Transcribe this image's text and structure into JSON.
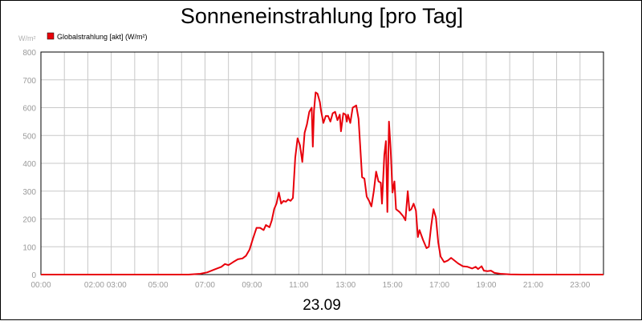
{
  "chart_data": {
    "type": "line",
    "title": "Sonneneinstrahlung [pro Tag]",
    "ylabel": "W/m²",
    "xlabel": "23.09",
    "ylim": [
      0,
      800
    ],
    "xlim": [
      0,
      24
    ],
    "yticks": [
      "0",
      "100",
      "200",
      "300",
      "400",
      "500",
      "600",
      "700",
      "800"
    ],
    "xticks": [
      {
        "x": 0,
        "label": "00:00"
      },
      {
        "x": 2.75,
        "label": "02:00 03:00"
      },
      {
        "x": 5,
        "label": "05:00"
      },
      {
        "x": 7,
        "label": "07:00"
      },
      {
        "x": 9,
        "label": "09:00"
      },
      {
        "x": 11,
        "label": "11:00"
      },
      {
        "x": 13,
        "label": "13:00"
      },
      {
        "x": 15,
        "label": "15:00"
      },
      {
        "x": 17,
        "label": "17:00"
      },
      {
        "x": 19,
        "label": "19:00"
      },
      {
        "x": 21,
        "label": "21:00"
      },
      {
        "x": 23,
        "label": "23:00"
      }
    ],
    "grid": true,
    "legend_position": "top-left",
    "series": [
      {
        "name": "Globalstrahlung [akt] (W/m²)",
        "color": "#e8000b",
        "points": [
          [
            0,
            0
          ],
          [
            6.3,
            0
          ],
          [
            6.8,
            3
          ],
          [
            7.1,
            8
          ],
          [
            7.4,
            18
          ],
          [
            7.7,
            28
          ],
          [
            7.85,
            38
          ],
          [
            8.0,
            34
          ],
          [
            8.2,
            45
          ],
          [
            8.4,
            55
          ],
          [
            8.6,
            58
          ],
          [
            8.75,
            68
          ],
          [
            8.9,
            90
          ],
          [
            9.05,
            130
          ],
          [
            9.2,
            168
          ],
          [
            9.35,
            168
          ],
          [
            9.5,
            160
          ],
          [
            9.6,
            178
          ],
          [
            9.75,
            170
          ],
          [
            9.85,
            195
          ],
          [
            9.95,
            235
          ],
          [
            10.05,
            255
          ],
          [
            10.15,
            295
          ],
          [
            10.25,
            255
          ],
          [
            10.35,
            265
          ],
          [
            10.45,
            262
          ],
          [
            10.55,
            270
          ],
          [
            10.65,
            265
          ],
          [
            10.75,
            275
          ],
          [
            10.85,
            420
          ],
          [
            10.95,
            490
          ],
          [
            11.05,
            465
          ],
          [
            11.15,
            405
          ],
          [
            11.25,
            510
          ],
          [
            11.35,
            540
          ],
          [
            11.45,
            585
          ],
          [
            11.55,
            600
          ],
          [
            11.6,
            460
          ],
          [
            11.65,
            590
          ],
          [
            11.72,
            655
          ],
          [
            11.8,
            650
          ],
          [
            11.9,
            620
          ],
          [
            11.95,
            590
          ],
          [
            12.05,
            545
          ],
          [
            12.15,
            570
          ],
          [
            12.25,
            570
          ],
          [
            12.35,
            550
          ],
          [
            12.45,
            580
          ],
          [
            12.55,
            585
          ],
          [
            12.65,
            555
          ],
          [
            12.75,
            575
          ],
          [
            12.8,
            515
          ],
          [
            12.9,
            580
          ],
          [
            13.0,
            575
          ],
          [
            13.05,
            550
          ],
          [
            13.1,
            575
          ],
          [
            13.2,
            545
          ],
          [
            13.3,
            600
          ],
          [
            13.45,
            608
          ],
          [
            13.55,
            560
          ],
          [
            13.7,
            350
          ],
          [
            13.8,
            345
          ],
          [
            13.9,
            280
          ],
          [
            14.0,
            265
          ],
          [
            14.1,
            245
          ],
          [
            14.2,
            300
          ],
          [
            14.3,
            370
          ],
          [
            14.4,
            335
          ],
          [
            14.5,
            330
          ],
          [
            14.55,
            255
          ],
          [
            14.65,
            430
          ],
          [
            14.72,
            480
          ],
          [
            14.78,
            225
          ],
          [
            14.85,
            550
          ],
          [
            14.92,
            450
          ],
          [
            15.0,
            295
          ],
          [
            15.08,
            335
          ],
          [
            15.15,
            235
          ],
          [
            15.3,
            225
          ],
          [
            15.45,
            210
          ],
          [
            15.55,
            195
          ],
          [
            15.65,
            300
          ],
          [
            15.72,
            230
          ],
          [
            15.8,
            235
          ],
          [
            15.9,
            255
          ],
          [
            16.0,
            230
          ],
          [
            16.08,
            135
          ],
          [
            16.15,
            160
          ],
          [
            16.3,
            125
          ],
          [
            16.45,
            95
          ],
          [
            16.55,
            100
          ],
          [
            16.65,
            175
          ],
          [
            16.75,
            235
          ],
          [
            16.85,
            205
          ],
          [
            16.95,
            115
          ],
          [
            17.05,
            65
          ],
          [
            17.2,
            45
          ],
          [
            17.35,
            50
          ],
          [
            17.5,
            60
          ],
          [
            17.65,
            50
          ],
          [
            17.8,
            40
          ],
          [
            18.0,
            30
          ],
          [
            18.2,
            28
          ],
          [
            18.4,
            22
          ],
          [
            18.55,
            28
          ],
          [
            18.65,
            20
          ],
          [
            18.8,
            30
          ],
          [
            18.9,
            14
          ],
          [
            19.05,
            12
          ],
          [
            19.2,
            14
          ],
          [
            19.35,
            6
          ],
          [
            19.6,
            3
          ],
          [
            20.0,
            1
          ],
          [
            20.5,
            0
          ],
          [
            24,
            0
          ]
        ]
      }
    ]
  }
}
